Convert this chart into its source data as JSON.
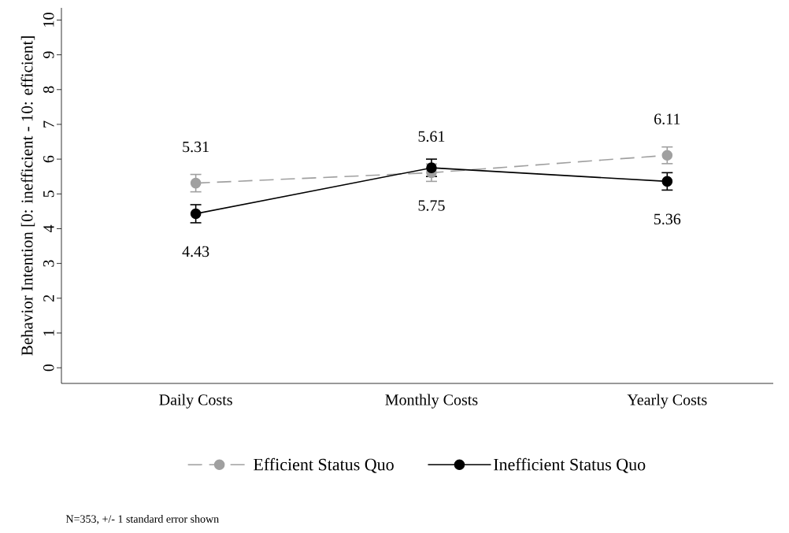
{
  "chart_data": {
    "type": "line",
    "ylabel": "Behavior Intention [0: inefficient - 10: efficient]",
    "categories": [
      "Daily Costs",
      "Monthly Costs",
      "Yearly Costs"
    ],
    "series": [
      {
        "name": "Efficient Status Quo",
        "color": "#a0a0a0",
        "line_style": "dashed",
        "values": [
          5.31,
          5.61,
          6.11
        ],
        "errors": [
          0.25,
          0.25,
          0.24
        ]
      },
      {
        "name": "Inefficient Status Quo",
        "color": "#000000",
        "line_style": "solid",
        "values": [
          4.43,
          5.75,
          5.36
        ],
        "errors": [
          0.26,
          0.25,
          0.25
        ]
      }
    ],
    "ylim": [
      -0.45,
      10.35
    ],
    "yticks": [
      0,
      1,
      2,
      3,
      4,
      5,
      6,
      7,
      8,
      9,
      10
    ],
    "marker": "circle",
    "data_labels": true,
    "legend": "bottom",
    "grid": false,
    "annotations": [
      "N=353, +/- 1 standard error shown"
    ]
  }
}
